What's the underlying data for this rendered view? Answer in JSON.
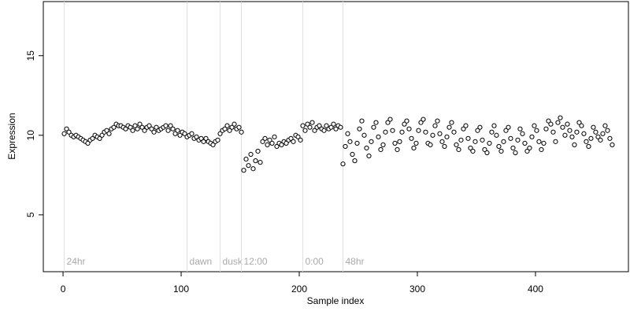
{
  "chart_data": {
    "type": "scatter",
    "x_label": "Sample index",
    "y_label": "Expression",
    "xlim": [
      -16.7,
      478.7
    ],
    "ylim": [
      1.43,
      18.4
    ],
    "xticks": [
      0,
      100,
      200,
      300,
      400
    ],
    "yticks": [
      5,
      10,
      15
    ],
    "color": "#000000",
    "fill": "#ffffff",
    "annotations": [
      {
        "x": 1,
        "label": "24hr"
      },
      {
        "x": 105,
        "label": "dawn"
      },
      {
        "x": 133,
        "label": "dusk"
      },
      {
        "x": 151,
        "label": "12:00"
      },
      {
        "x": 203,
        "label": "0:00"
      },
      {
        "x": 237,
        "label": "48hr"
      }
    ],
    "x": [
      1,
      3,
      5,
      7,
      9,
      11,
      13,
      15,
      17,
      19,
      21,
      23,
      25,
      27,
      29,
      31,
      33,
      35,
      37,
      39,
      41,
      43,
      45,
      47,
      49,
      51,
      53,
      55,
      57,
      59,
      61,
      63,
      65,
      67,
      69,
      71,
      73,
      75,
      77,
      79,
      81,
      83,
      85,
      87,
      89,
      91,
      93,
      95,
      97,
      99,
      101,
      103,
      105,
      107,
      109,
      111,
      113,
      115,
      117,
      119,
      121,
      123,
      125,
      127,
      129,
      131,
      133,
      135,
      137,
      139,
      141,
      143,
      145,
      147,
      149,
      151,
      153,
      155,
      157,
      159,
      161,
      163,
      165,
      167,
      169,
      171,
      173,
      175,
      177,
      179,
      181,
      183,
      185,
      187,
      189,
      191,
      193,
      195,
      197,
      199,
      201,
      203,
      205,
      207,
      209,
      211,
      213,
      215,
      217,
      219,
      221,
      223,
      225,
      227,
      229,
      231,
      233,
      235,
      237,
      239,
      241,
      243,
      245,
      247,
      249,
      251,
      253,
      255,
      257,
      259,
      261,
      263,
      265,
      267,
      269,
      271,
      273,
      275,
      277,
      279,
      281,
      283,
      285,
      287,
      289,
      291,
      293,
      295,
      297,
      299,
      301,
      303,
      305,
      307,
      309,
      311,
      313,
      315,
      317,
      319,
      321,
      323,
      325,
      327,
      329,
      331,
      333,
      335,
      337,
      339,
      341,
      343,
      345,
      347,
      349,
      351,
      353,
      355,
      357,
      359,
      361,
      363,
      365,
      367,
      369,
      371,
      373,
      375,
      377,
      379,
      381,
      383,
      385,
      387,
      389,
      391,
      393,
      395,
      397,
      399,
      401,
      403,
      405,
      407,
      409,
      411,
      413,
      415,
      417,
      419,
      421,
      423,
      425,
      427,
      429,
      431,
      433,
      435,
      437,
      439,
      441,
      443,
      445,
      447,
      449,
      451,
      453,
      455,
      457,
      459,
      461,
      463,
      465
    ],
    "values": [
      10.1,
      10.4,
      10.2,
      10.0,
      9.9,
      10.0,
      9.9,
      9.8,
      9.7,
      9.6,
      9.5,
      9.7,
      9.8,
      10.0,
      9.9,
      9.8,
      10.0,
      10.2,
      10.3,
      10.1,
      10.4,
      10.5,
      10.7,
      10.6,
      10.6,
      10.5,
      10.4,
      10.6,
      10.5,
      10.3,
      10.6,
      10.4,
      10.7,
      10.5,
      10.3,
      10.5,
      10.6,
      10.4,
      10.2,
      10.5,
      10.3,
      10.4,
      10.5,
      10.6,
      10.3,
      10.6,
      10.4,
      10.1,
      10.3,
      10.0,
      10.2,
      10.1,
      9.9,
      10.0,
      10.1,
      9.8,
      9.9,
      9.7,
      9.8,
      9.6,
      9.8,
      9.6,
      9.5,
      9.4,
      9.6,
      9.7,
      10.1,
      10.3,
      10.4,
      10.6,
      10.3,
      10.5,
      10.7,
      10.4,
      10.5,
      10.2,
      7.8,
      8.5,
      8.1,
      8.8,
      7.9,
      8.4,
      9.0,
      8.3,
      9.6,
      9.8,
      9.4,
      9.7,
      9.5,
      9.9,
      9.3,
      9.5,
      9.4,
      9.6,
      9.5,
      9.7,
      9.8,
      9.6,
      10.0,
      9.9,
      9.7,
      10.6,
      10.3,
      10.7,
      10.5,
      10.8,
      10.3,
      10.5,
      10.6,
      10.4,
      10.3,
      10.6,
      10.4,
      10.5,
      10.7,
      10.4,
      10.6,
      10.5,
      8.2,
      9.3,
      10.1,
      9.6,
      8.8,
      8.4,
      9.5,
      10.4,
      10.9,
      10.0,
      9.2,
      8.7,
      9.6,
      10.5,
      10.8,
      9.9,
      9.1,
      9.4,
      10.2,
      10.8,
      11.0,
      10.3,
      9.5,
      9.1,
      9.6,
      10.2,
      10.7,
      10.9,
      10.4,
      9.8,
      9.2,
      9.5,
      10.3,
      10.8,
      11.0,
      10.2,
      9.5,
      9.4,
      10.0,
      10.6,
      10.9,
      10.1,
      9.6,
      9.3,
      9.9,
      10.5,
      10.8,
      10.2,
      9.4,
      9.1,
      9.7,
      10.4,
      10.6,
      9.8,
      9.2,
      9.0,
      9.6,
      10.3,
      10.5,
      9.7,
      9.1,
      8.9,
      9.5,
      10.2,
      10.6,
      10.0,
      9.3,
      9.0,
      9.6,
      10.3,
      10.5,
      9.8,
      9.2,
      8.9,
      9.7,
      10.4,
      10.1,
      9.5,
      9.0,
      9.2,
      9.9,
      10.6,
      10.3,
      9.6,
      9.1,
      9.5,
      10.4,
      10.9,
      10.7,
      10.2,
      9.6,
      10.8,
      11.1,
      10.5,
      10.0,
      10.7,
      10.3,
      9.9,
      9.4,
      10.2,
      10.8,
      10.6,
      10.1,
      9.6,
      9.3,
      9.8,
      10.5,
      10.2,
      9.9,
      9.7,
      10.1,
      10.6,
      10.3,
      9.8,
      9.4
    ]
  }
}
